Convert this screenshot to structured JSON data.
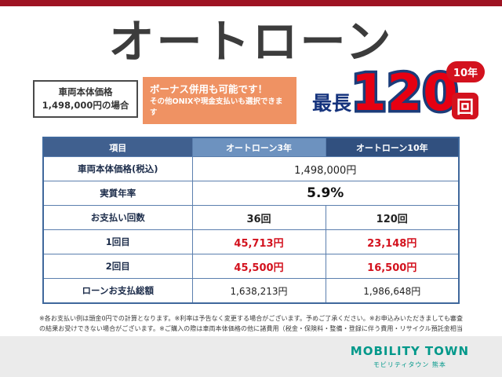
{
  "title": "オートローン",
  "price_case": {
    "line1": "車両本体価格",
    "line2": "1,498,000円の場合"
  },
  "callout": {
    "line1": "ボーナス併用も可能です！",
    "line2": "その他ONIXや現金支払いも選択できます"
  },
  "headline": {
    "prefix": "最長",
    "number": "120",
    "unit": "回",
    "badge": "10年"
  },
  "table": {
    "headers": [
      "項目",
      "オートローン3年",
      "オートローン10年"
    ],
    "rows": [
      {
        "label": "車両本体価格(税込)",
        "value": "1,498,000円"
      },
      {
        "label": "実質年率",
        "value": "5.9%"
      },
      {
        "label": "お支払い回数",
        "col1": "36回",
        "col2": "120回"
      },
      {
        "label": "1回目",
        "col1": "45,713円",
        "col2": "23,148円"
      },
      {
        "label": "2回目",
        "col1": "45,500円",
        "col2": "16,500円"
      },
      {
        "label": "ローンお支払総額",
        "col1": "1,638,213円",
        "col2": "1,986,648円"
      }
    ]
  },
  "disclaimer": "※各お支払い例は頭金0円での計算となります。※利率は予告なく変更する場合がございます。予めご了承ください。※お申込みいただきましても審査の結果お受けできない場合がございます。※ご購入の際は車両本体価格の他に諸費用（税金・保険料・整備・登録に伴う費用・リサイクル預託金相当額）が含まれます※付属品や保証等のオプション費用も別途申し受けます※詳しくは当店スタッフへお問い合わせください。",
  "footer": {
    "brand": "MOBILITY TOWN",
    "brand_sub": "モビリティタウン 熊本"
  },
  "colors": {
    "top_bar": "#9e1322",
    "accent_red": "#d3121e",
    "number_red": "#e60012",
    "navy": "#15337d",
    "header_item": "#40608f",
    "header_3y": "#6d92bf",
    "header_10y": "#31507f",
    "callout_orange": "#ef9263",
    "brand_teal": "#00988a"
  }
}
